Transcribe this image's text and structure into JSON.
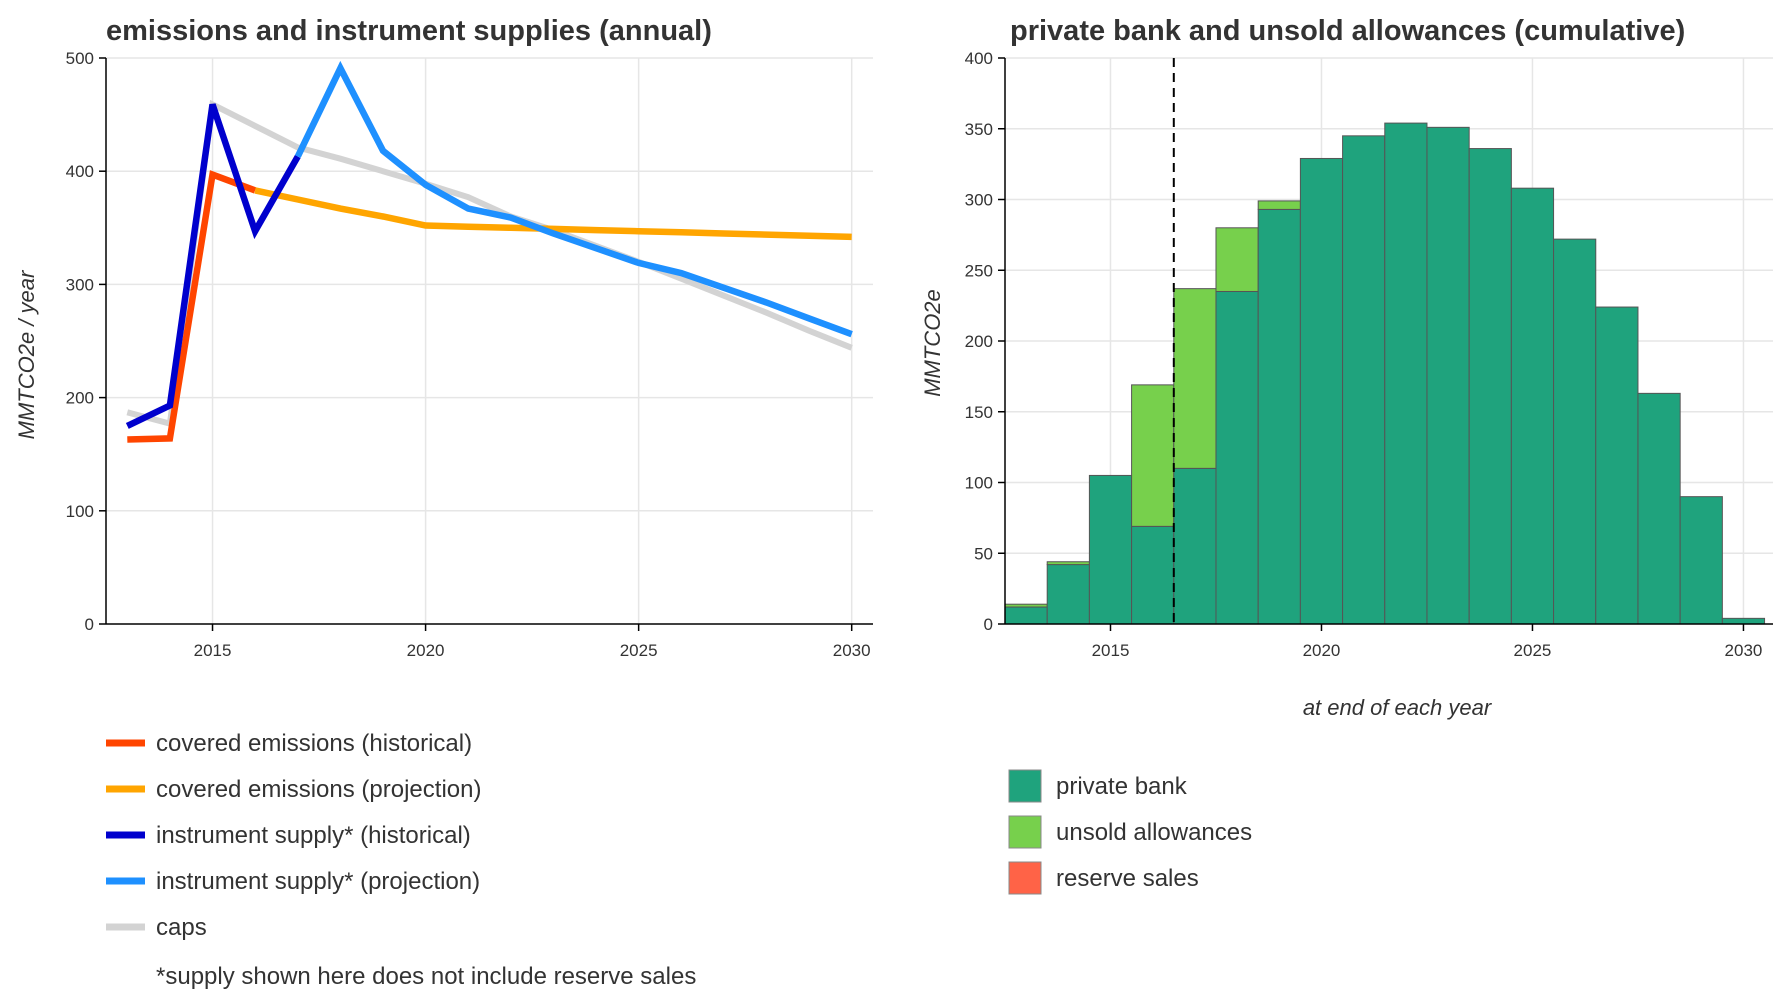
{
  "chart_data": [
    {
      "type": "line",
      "title": "emissions and instrument supplies (annual)",
      "ylabel": "MMTCO2e / year",
      "xlabel": "",
      "xlim": [
        2012.5,
        2030.5
      ],
      "ylim": [
        0,
        500
      ],
      "xticks": [
        2015,
        2020,
        2025,
        2030
      ],
      "yticks": [
        0,
        100,
        200,
        300,
        400,
        500
      ],
      "grid": true,
      "series": [
        {
          "name": "caps",
          "color": "#d3d3d3",
          "x": [
            2013,
            2014,
            2015,
            2016,
            2017,
            2018,
            2019,
            2020,
            2021,
            2022,
            2023,
            2024,
            2025,
            2026,
            2027,
            2028,
            2029,
            2030
          ],
          "y": [
            187,
            177,
            459,
            440,
            421,
            411,
            400,
            389,
            377,
            360,
            348,
            334,
            320,
            305,
            290,
            275,
            259,
            244
          ]
        },
        {
          "name": "covered emissions (historical)",
          "color": "#ff4500",
          "x": [
            2013,
            2014,
            2015,
            2016
          ],
          "y": [
            163,
            164,
            397,
            383
          ]
        },
        {
          "name": "covered emissions (projection)",
          "color": "#ffa500",
          "x": [
            2016,
            2017,
            2018,
            2019,
            2020,
            2021,
            2022,
            2023,
            2024,
            2025,
            2026,
            2027,
            2028,
            2029,
            2030
          ],
          "y": [
            383,
            375,
            367,
            360,
            352,
            351,
            350,
            349,
            348,
            347,
            346,
            345,
            344,
            343,
            342
          ]
        },
        {
          "name": "instrument supply* (historical)",
          "color": "#0000cd",
          "x": [
            2013,
            2014,
            2015,
            2016,
            2017
          ],
          "y": [
            175,
            193,
            459,
            347,
            413
          ]
        },
        {
          "name": "instrument supply* (projection)",
          "color": "#1e90ff",
          "x": [
            2017,
            2018,
            2019,
            2020,
            2021,
            2022,
            2023,
            2024,
            2025,
            2026,
            2027,
            2028,
            2029,
            2030
          ],
          "y": [
            413,
            491,
            418,
            388,
            367,
            359,
            345,
            332,
            319,
            310,
            297,
            284,
            270,
            256
          ]
        }
      ]
    },
    {
      "type": "bar",
      "stacked": true,
      "title": "private bank and unsold allowances (cumulative)",
      "ylabel": "MMTCO2e",
      "xlabel": "at end of each year",
      "xlim": [
        2012.5,
        2030.7
      ],
      "ylim": [
        0,
        400
      ],
      "xticks": [
        2015,
        2020,
        2025,
        2030
      ],
      "yticks": [
        0,
        50,
        100,
        150,
        200,
        250,
        300,
        350,
        400
      ],
      "grid": true,
      "vline": {
        "x": 2016.5,
        "style": "dashed"
      },
      "categories": [
        2013,
        2014,
        2015,
        2016,
        2017,
        2018,
        2019,
        2020,
        2021,
        2022,
        2023,
        2024,
        2025,
        2026,
        2027,
        2028,
        2029,
        2030
      ],
      "series": [
        {
          "name": "private bank",
          "color": "#1fa37d",
          "values": [
            12,
            42,
            105,
            69,
            110,
            235,
            293,
            329,
            345,
            354,
            351,
            336,
            308,
            272,
            224,
            163,
            90,
            4
          ]
        },
        {
          "name": "unsold allowances",
          "color": "#77d04c",
          "values": [
            2,
            2,
            0,
            100,
            127,
            45,
            6,
            0,
            0,
            0,
            0,
            0,
            0,
            0,
            0,
            0,
            0,
            0
          ]
        },
        {
          "name": "reserve sales",
          "color": "#ff6347",
          "values": [
            0,
            0,
            0,
            0,
            0,
            0,
            0,
            0,
            0,
            0,
            0,
            0,
            0,
            0,
            0,
            0,
            0,
            0
          ]
        }
      ]
    }
  ],
  "legend_left": {
    "items": [
      {
        "label": "covered emissions (historical)",
        "color": "#ff4500"
      },
      {
        "label": "covered emissions (projection)",
        "color": "#ffa500"
      },
      {
        "label": "instrument supply* (historical)",
        "color": "#0000cd"
      },
      {
        "label": "instrument supply* (projection)",
        "color": "#1e90ff"
      },
      {
        "label": "caps",
        "color": "#d3d3d3"
      }
    ],
    "footnote": "*supply shown here does not include reserve sales"
  },
  "legend_right": {
    "items": [
      {
        "label": "private bank",
        "color": "#1fa37d"
      },
      {
        "label": "unsold allowances",
        "color": "#77d04c"
      },
      {
        "label": "reserve sales",
        "color": "#ff6347"
      }
    ]
  }
}
